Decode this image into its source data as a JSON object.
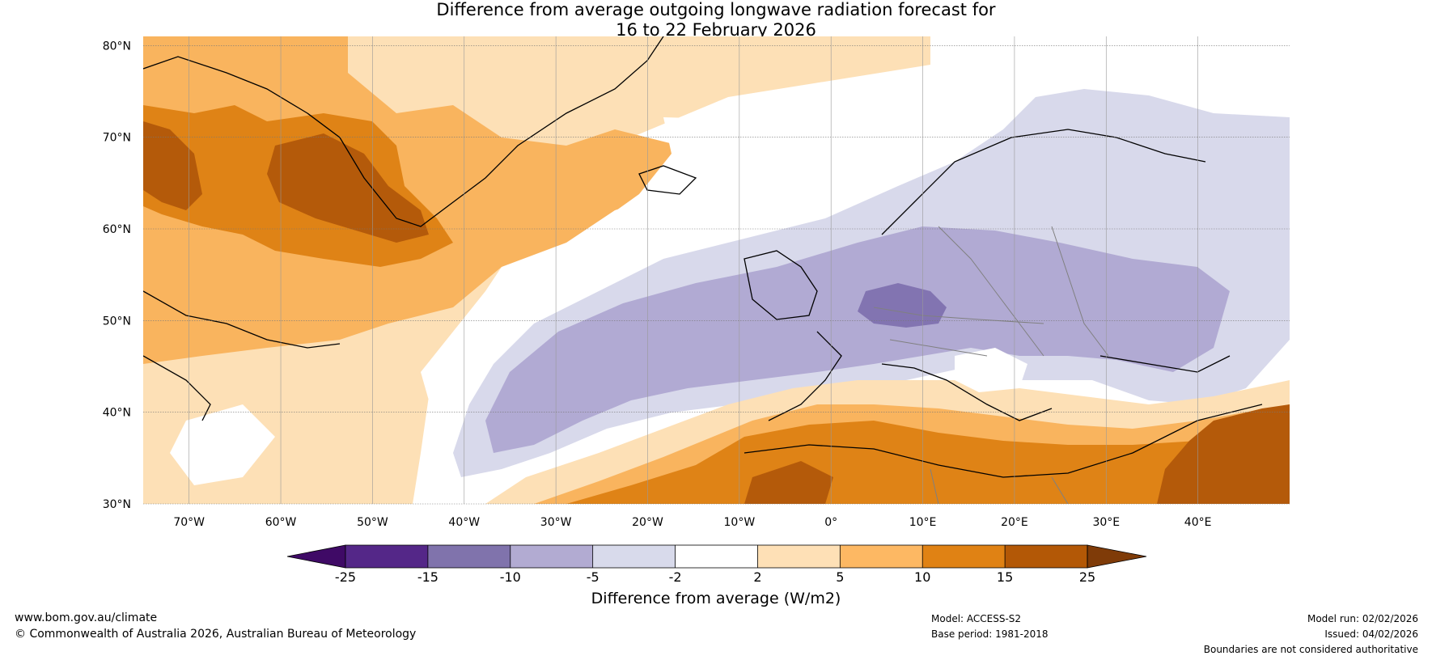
{
  "title": {
    "line1": "Difference from average outgoing longwave radiation forecast for",
    "line2": "16 to 22 February 2026"
  },
  "map": {
    "lat_labels": [
      "80°N",
      "70°N",
      "60°N",
      "50°N",
      "40°N",
      "30°N"
    ],
    "lon_labels": [
      "70°W",
      "60°W",
      "50°W",
      "40°W",
      "30°W",
      "20°W",
      "10°W",
      "0°",
      "10°E",
      "20°E",
      "30°E",
      "40°E"
    ],
    "lon_range": [
      -75,
      50
    ],
    "lat_range": [
      30,
      81
    ],
    "colors": {
      "ocean_white": "#ffffff",
      "pos_2_5": "#fde0b6",
      "pos_5_10": "#f9b45e",
      "pos_10_15": "#df8316",
      "pos_15_25": "#b45a0a",
      "neg_2_5": "#d8d9eb",
      "neg_5_10": "#b1aad3",
      "neg_10_15": "#8274b1",
      "coast": "#000000",
      "border": "#808080"
    }
  },
  "colorbar": {
    "ticks": [
      "-25",
      "-15",
      "-10",
      "-5",
      "-2",
      "2",
      "5",
      "10",
      "15",
      "25"
    ],
    "colors": [
      "#3f0a66",
      "#542788",
      "#8073ac",
      "#b2abd2",
      "#d8daeb",
      "#ffffff",
      "#fee0b6",
      "#fdb863",
      "#e08214",
      "#b35806",
      "#7f3b08"
    ],
    "label": "Difference from average (W/m2)"
  },
  "footer": {
    "url": "www.bom.gov.au/climate",
    "copyright": "© Commonwealth of Australia 2026, Australian Bureau of Meteorology",
    "model": "Model: ACCESS-S2",
    "base_period": "Base period: 1981-2018",
    "model_run": "Model run: 02/02/2026",
    "issued": "Issued: 04/02/2026",
    "disclaimer": "Boundaries are not considered authoritative"
  }
}
